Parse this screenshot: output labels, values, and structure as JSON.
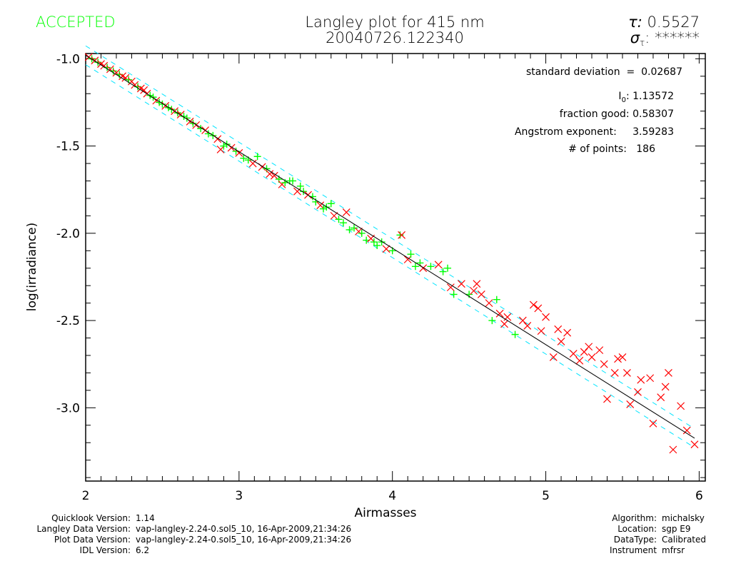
{
  "header": {
    "status": "ACCEPTED",
    "title_line1": "Langley plot for 415 nm",
    "title_line2": "20040726.122340",
    "tau_label": "τ: ",
    "tau_value": "0.5527",
    "sigma_tau_label": "σ",
    "sigma_tau_sub": "τ",
    "sigma_tau_value": ": ******"
  },
  "stats": {
    "std_dev": "standard deviation  =  0.02687",
    "i0_label": "I",
    "i0_sub": "0",
    "i0_value": ": 1.13572",
    "fraction_good": "fraction good: 0.58307",
    "angstrom": "Angstrom exponent:     3.59283",
    "num_points": "# of points:   186"
  },
  "footer_left": [
    {
      "label": "Quicklook Version:",
      "value": "1.14"
    },
    {
      "label": "Langley Data Version:",
      "value": "vap-langley-2.24-0.sol5_10, 16-Apr-2009,21:34:26"
    },
    {
      "label": "Plot Data Version:",
      "value": "vap-langley-2.24-0.sol5_10, 16-Apr-2009,21:34:26"
    },
    {
      "label": "IDL Version:",
      "value": "6.2"
    }
  ],
  "footer_right": [
    {
      "label": "Algorithm:",
      "value": "michalsky"
    },
    {
      "label": "Location:",
      "value": "sgp E9"
    },
    {
      "label": "DataType:",
      "value": "Calibrated"
    },
    {
      "label": "Instrument",
      "value": "mfrsr"
    }
  ],
  "colors": {
    "accepted": "#00ff00",
    "rejected": "#ff0000",
    "fit": "#000000",
    "band": "#00e5ff",
    "status": "#00ff00"
  },
  "chart_data": {
    "type": "scatter",
    "title": "Langley plot for 415 nm",
    "xlabel": "Airmasses",
    "ylabel": "log(irradiance)",
    "xlim": [
      2.0,
      6.04
    ],
    "ylim": [
      -3.42,
      -0.97
    ],
    "xticks": [
      "2",
      "3",
      "4",
      "5",
      "6"
    ],
    "xtick_values": [
      2,
      3,
      4,
      5,
      6
    ],
    "yticks": [
      "-1.0",
      "-1.5",
      "-2.0",
      "-2.5",
      "-3.0"
    ],
    "ytick_values": [
      -1.0,
      -1.5,
      -2.0,
      -2.5,
      -3.0
    ],
    "fit": {
      "intercept_at_x2": -0.98,
      "slope": -0.5527,
      "x_range": [
        2.0,
        5.97
      ],
      "band_offset": 0.054
    },
    "legend_markers": {
      "g": "accepted (+)",
      "r": "rejected (x)"
    },
    "points": [
      [
        2.02,
        -0.99,
        "r"
      ],
      [
        2.04,
        -1.0,
        "g"
      ],
      [
        2.06,
        -1.01,
        "r"
      ],
      [
        2.08,
        -1.02,
        "g"
      ],
      [
        2.1,
        -1.03,
        "r"
      ],
      [
        2.12,
        -1.04,
        "r"
      ],
      [
        2.14,
        -1.05,
        "g"
      ],
      [
        2.16,
        -1.06,
        "r"
      ],
      [
        2.18,
        -1.07,
        "g"
      ],
      [
        2.2,
        -1.08,
        "r"
      ],
      [
        2.22,
        -1.09,
        "g"
      ],
      [
        2.24,
        -1.1,
        "r"
      ],
      [
        2.26,
        -1.11,
        "r"
      ],
      [
        2.28,
        -1.12,
        "g"
      ],
      [
        2.3,
        -1.13,
        "r"
      ],
      [
        2.32,
        -1.15,
        "r"
      ],
      [
        2.34,
        -1.16,
        "g"
      ],
      [
        2.36,
        -1.17,
        "r"
      ],
      [
        2.38,
        -1.18,
        "r"
      ],
      [
        2.4,
        -1.2,
        "r"
      ],
      [
        2.42,
        -1.21,
        "g"
      ],
      [
        2.44,
        -1.22,
        "g"
      ],
      [
        2.46,
        -1.24,
        "r"
      ],
      [
        2.48,
        -1.25,
        "g"
      ],
      [
        2.5,
        -1.26,
        "g"
      ],
      [
        2.52,
        -1.27,
        "r"
      ],
      [
        2.54,
        -1.28,
        "g"
      ],
      [
        2.56,
        -1.29,
        "g"
      ],
      [
        2.58,
        -1.3,
        "r"
      ],
      [
        2.6,
        -1.31,
        "g"
      ],
      [
        2.62,
        -1.32,
        "r"
      ],
      [
        2.64,
        -1.33,
        "g"
      ],
      [
        2.66,
        -1.34,
        "g"
      ],
      [
        2.68,
        -1.36,
        "r"
      ],
      [
        2.7,
        -1.37,
        "g"
      ],
      [
        2.72,
        -1.38,
        "r"
      ],
      [
        2.75,
        -1.4,
        "g"
      ],
      [
        2.78,
        -1.41,
        "r"
      ],
      [
        2.8,
        -1.43,
        "g"
      ],
      [
        2.83,
        -1.44,
        "g"
      ],
      [
        2.86,
        -1.46,
        "r"
      ],
      [
        2.88,
        -1.52,
        "r"
      ],
      [
        2.9,
        -1.5,
        "g"
      ],
      [
        2.92,
        -1.49,
        "g"
      ],
      [
        2.95,
        -1.51,
        "r"
      ],
      [
        2.98,
        -1.53,
        "g"
      ],
      [
        3.0,
        -1.54,
        "r"
      ],
      [
        3.03,
        -1.57,
        "g"
      ],
      [
        3.06,
        -1.58,
        "g"
      ],
      [
        3.09,
        -1.6,
        "r"
      ],
      [
        3.12,
        -1.56,
        "g"
      ],
      [
        3.15,
        -1.62,
        "r"
      ],
      [
        3.18,
        -1.63,
        "g"
      ],
      [
        3.2,
        -1.66,
        "r"
      ],
      [
        3.23,
        -1.67,
        "r"
      ],
      [
        3.26,
        -1.69,
        "g"
      ],
      [
        3.28,
        -1.72,
        "r"
      ],
      [
        3.3,
        -1.71,
        "g"
      ],
      [
        3.33,
        -1.7,
        "g"
      ],
      [
        3.35,
        -1.7,
        "g"
      ],
      [
        3.38,
        -1.76,
        "r"
      ],
      [
        3.4,
        -1.73,
        "g"
      ],
      [
        3.42,
        -1.76,
        "g"
      ],
      [
        3.45,
        -1.78,
        "r"
      ],
      [
        3.48,
        -1.79,
        "g"
      ],
      [
        3.5,
        -1.82,
        "g"
      ],
      [
        3.53,
        -1.84,
        "r"
      ],
      [
        3.55,
        -1.86,
        "g"
      ],
      [
        3.57,
        -1.85,
        "g"
      ],
      [
        3.6,
        -1.83,
        "g"
      ],
      [
        3.62,
        -1.9,
        "r"
      ],
      [
        3.65,
        -1.92,
        "g"
      ],
      [
        3.68,
        -1.94,
        "g"
      ],
      [
        3.7,
        -1.88,
        "r"
      ],
      [
        3.72,
        -1.98,
        "g"
      ],
      [
        3.75,
        -1.97,
        "g"
      ],
      [
        3.78,
        -1.99,
        "r"
      ],
      [
        3.8,
        -2.0,
        "g"
      ],
      [
        3.83,
        -2.04,
        "g"
      ],
      [
        3.86,
        -2.03,
        "r"
      ],
      [
        3.88,
        -2.05,
        "g"
      ],
      [
        3.9,
        -2.07,
        "g"
      ],
      [
        3.93,
        -2.05,
        "g"
      ],
      [
        3.96,
        -2.09,
        "r"
      ],
      [
        4.0,
        -2.1,
        "g"
      ],
      [
        4.05,
        -2.01,
        "g"
      ],
      [
        4.06,
        -2.01,
        "r"
      ],
      [
        4.1,
        -2.15,
        "r"
      ],
      [
        4.12,
        -2.12,
        "g"
      ],
      [
        4.15,
        -2.19,
        "g"
      ],
      [
        4.18,
        -2.17,
        "g"
      ],
      [
        4.2,
        -2.2,
        "r"
      ],
      [
        4.25,
        -2.19,
        "g"
      ],
      [
        4.3,
        -2.18,
        "r"
      ],
      [
        4.33,
        -2.22,
        "g"
      ],
      [
        4.36,
        -2.2,
        "g"
      ],
      [
        4.38,
        -2.31,
        "r"
      ],
      [
        4.4,
        -2.35,
        "g"
      ],
      [
        4.45,
        -2.29,
        "r"
      ],
      [
        4.5,
        -2.35,
        "g"
      ],
      [
        4.53,
        -2.33,
        "r"
      ],
      [
        4.55,
        -2.29,
        "r"
      ],
      [
        4.58,
        -2.35,
        "r"
      ],
      [
        4.63,
        -2.4,
        "r"
      ],
      [
        4.65,
        -2.5,
        "g"
      ],
      [
        4.68,
        -2.38,
        "g"
      ],
      [
        4.7,
        -2.46,
        "r"
      ],
      [
        4.73,
        -2.52,
        "r"
      ],
      [
        4.75,
        -2.48,
        "r"
      ],
      [
        4.8,
        -2.58,
        "g"
      ],
      [
        4.85,
        -2.5,
        "r"
      ],
      [
        4.88,
        -2.53,
        "r"
      ],
      [
        4.92,
        -2.41,
        "r"
      ],
      [
        4.95,
        -2.43,
        "r"
      ],
      [
        4.97,
        -2.56,
        "r"
      ],
      [
        5.0,
        -2.48,
        "r"
      ],
      [
        5.05,
        -2.71,
        "r"
      ],
      [
        5.08,
        -2.55,
        "r"
      ],
      [
        5.1,
        -2.62,
        "r"
      ],
      [
        5.14,
        -2.57,
        "r"
      ],
      [
        5.18,
        -2.69,
        "r"
      ],
      [
        5.22,
        -2.73,
        "r"
      ],
      [
        5.25,
        -2.68,
        "r"
      ],
      [
        5.28,
        -2.65,
        "r"
      ],
      [
        5.3,
        -2.71,
        "r"
      ],
      [
        5.35,
        -2.67,
        "r"
      ],
      [
        5.38,
        -2.75,
        "r"
      ],
      [
        5.4,
        -2.95,
        "r"
      ],
      [
        5.45,
        -2.8,
        "r"
      ],
      [
        5.47,
        -2.72,
        "r"
      ],
      [
        5.5,
        -2.71,
        "r"
      ],
      [
        5.53,
        -2.8,
        "r"
      ],
      [
        5.55,
        -2.98,
        "r"
      ],
      [
        5.6,
        -2.91,
        "r"
      ],
      [
        5.62,
        -2.84,
        "r"
      ],
      [
        5.68,
        -2.83,
        "r"
      ],
      [
        5.7,
        -3.09,
        "r"
      ],
      [
        5.75,
        -2.94,
        "r"
      ],
      [
        5.78,
        -2.88,
        "r"
      ],
      [
        5.8,
        -2.8,
        "r"
      ],
      [
        5.83,
        -3.24,
        "r"
      ],
      [
        5.88,
        -2.99,
        "r"
      ],
      [
        5.92,
        -3.13,
        "r"
      ],
      [
        5.97,
        -3.21,
        "r"
      ]
    ]
  }
}
